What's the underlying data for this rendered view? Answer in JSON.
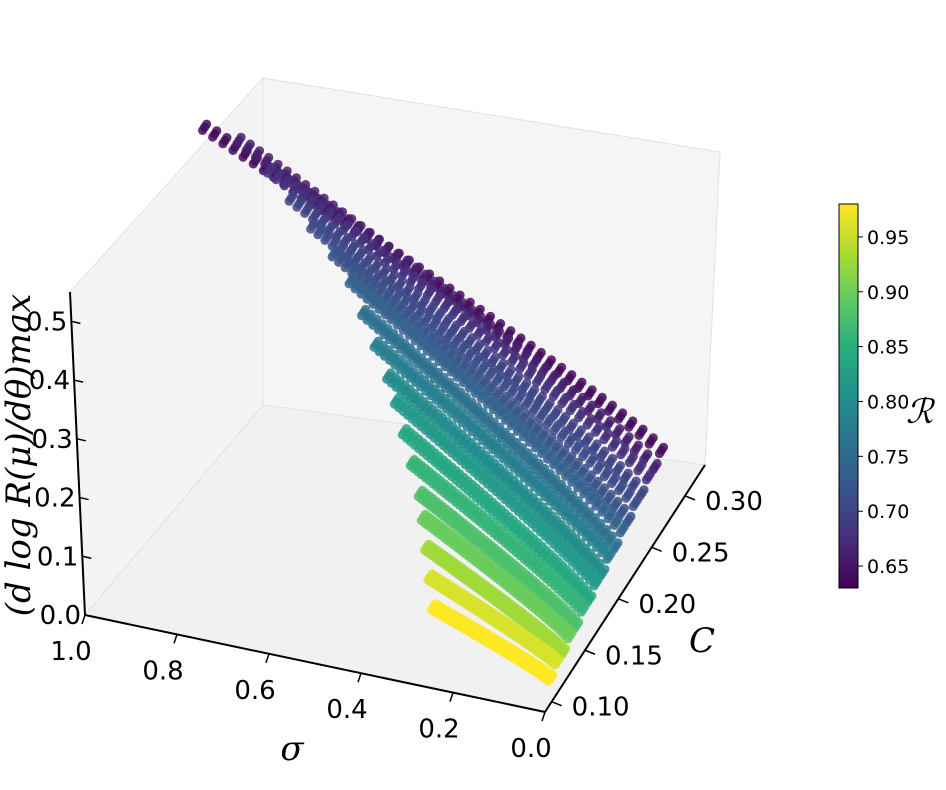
{
  "chart_data": {
    "type": "scatter3d",
    "x_axis": {
      "label": "σ",
      "range": [
        0.0,
        1.0
      ],
      "ticks": [
        1.0,
        0.8,
        0.6,
        0.4,
        0.2,
        0.0
      ],
      "tick_labels": [
        "1.0",
        "0.8",
        "0.6",
        "0.4",
        "0.2",
        "0.0"
      ]
    },
    "y_axis": {
      "label": "C",
      "range": [
        0.09,
        0.33
      ],
      "ticks": [
        0.1,
        0.15,
        0.2,
        0.25,
        0.3
      ],
      "tick_labels": [
        "0.10",
        "0.15",
        "0.20",
        "0.25",
        "0.30"
      ]
    },
    "z_axis": {
      "label": "(d log R(μ)/dθ)max",
      "range": [
        0.0,
        0.55
      ],
      "ticks": [
        0.0,
        0.1,
        0.2,
        0.3,
        0.4,
        0.5
      ],
      "tick_labels": [
        "0.0",
        "0.1",
        "0.2",
        "0.3",
        "0.4",
        "0.5"
      ]
    },
    "colorbar": {
      "label": "ℛ",
      "range": [
        0.63,
        0.98
      ],
      "ticks": [
        0.65,
        0.7,
        0.75,
        0.8,
        0.85,
        0.9,
        0.95
      ],
      "tick_labels": [
        "0.65",
        "0.70",
        "0.75",
        "0.80",
        "0.85",
        "0.90",
        "0.95"
      ]
    },
    "series": [
      {
        "C": 0.1,
        "R_color": 0.98,
        "sigma": [
          0.0,
          0.25
        ],
        "z_at_sigma_min": 0.04,
        "z_at_sigma_max": 0.12
      },
      {
        "C": 0.11,
        "R_color": 0.96,
        "sigma": [
          0.0,
          0.27
        ],
        "z_at_sigma_min": 0.05,
        "z_at_sigma_max": 0.15
      },
      {
        "C": 0.12,
        "R_color": 0.93,
        "sigma": [
          0.0,
          0.29
        ],
        "z_at_sigma_min": 0.05,
        "z_at_sigma_max": 0.18
      },
      {
        "C": 0.13,
        "R_color": 0.9,
        "sigma": [
          0.0,
          0.31
        ],
        "z_at_sigma_min": 0.06,
        "z_at_sigma_max": 0.21
      },
      {
        "C": 0.14,
        "R_color": 0.88,
        "sigma": [
          0.0,
          0.33
        ],
        "z_at_sigma_min": 0.06,
        "z_at_sigma_max": 0.23
      },
      {
        "C": 0.15,
        "R_color": 0.86,
        "sigma": [
          0.0,
          0.36
        ],
        "z_at_sigma_min": 0.07,
        "z_at_sigma_max": 0.26
      },
      {
        "C": 0.16,
        "R_color": 0.84,
        "sigma": [
          0.0,
          0.39
        ],
        "z_at_sigma_min": 0.07,
        "z_at_sigma_max": 0.29
      },
      {
        "C": 0.17,
        "R_color": 0.82,
        "sigma": [
          0.0,
          0.42
        ],
        "z_at_sigma_min": 0.08,
        "z_at_sigma_max": 0.32
      },
      {
        "C": 0.18,
        "R_color": 0.8,
        "sigma": [
          0.0,
          0.45
        ],
        "z_at_sigma_min": 0.08,
        "z_at_sigma_max": 0.34
      },
      {
        "C": 0.19,
        "R_color": 0.78,
        "sigma": [
          0.0,
          0.49
        ],
        "z_at_sigma_min": 0.09,
        "z_at_sigma_max": 0.37
      },
      {
        "C": 0.2,
        "R_color": 0.76,
        "sigma": [
          0.0,
          0.53
        ],
        "z_at_sigma_min": 0.09,
        "z_at_sigma_max": 0.4
      },
      {
        "C": 0.21,
        "R_color": 0.74,
        "sigma": [
          0.0,
          0.57
        ],
        "z_at_sigma_min": 0.1,
        "z_at_sigma_max": 0.43
      },
      {
        "C": 0.22,
        "R_color": 0.72,
        "sigma": [
          0.0,
          0.62
        ],
        "z_at_sigma_min": 0.1,
        "z_at_sigma_max": 0.45
      },
      {
        "C": 0.23,
        "R_color": 0.71,
        "sigma": [
          0.0,
          0.68
        ],
        "z_at_sigma_min": 0.11,
        "z_at_sigma_max": 0.47
      },
      {
        "C": 0.24,
        "R_color": 0.7,
        "sigma": [
          0.0,
          0.74
        ],
        "z_at_sigma_min": 0.11,
        "z_at_sigma_max": 0.49
      },
      {
        "C": 0.25,
        "R_color": 0.68,
        "sigma": [
          0.0,
          0.8
        ],
        "z_at_sigma_min": 0.12,
        "z_at_sigma_max": 0.51
      },
      {
        "C": 0.26,
        "R_color": 0.66,
        "sigma": [
          0.0,
          0.88
        ],
        "z_at_sigma_min": 0.12,
        "z_at_sigma_max": 0.53
      },
      {
        "C": 0.27,
        "R_color": 0.64,
        "sigma": [
          0.0,
          0.97
        ],
        "z_at_sigma_min": 0.13,
        "z_at_sigma_max": 0.52
      }
    ]
  }
}
